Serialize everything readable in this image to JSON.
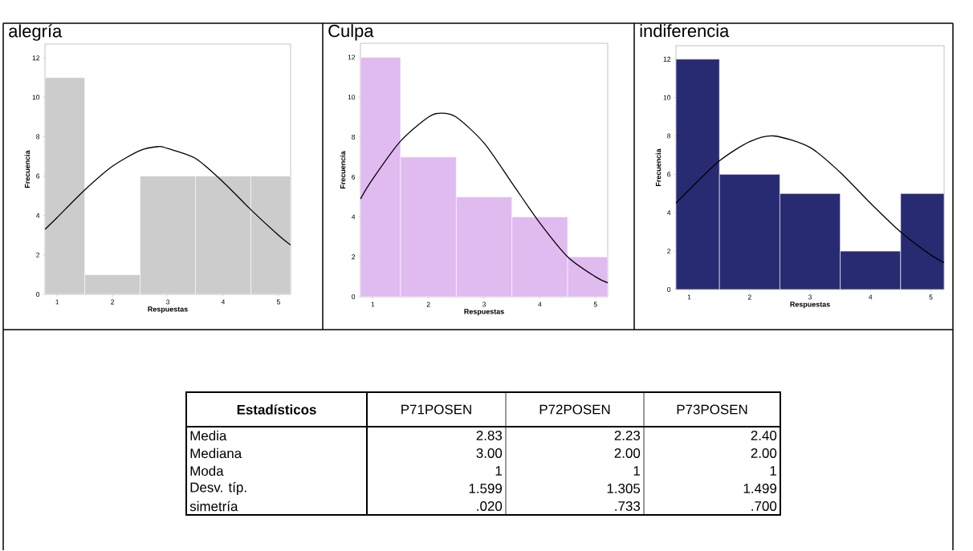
{
  "chart_data": [
    {
      "type": "histogram",
      "title": "alegría",
      "xlabel": "Respuestas",
      "ylabel": "Frecuencia",
      "bins": [
        0.78,
        1.5,
        2.5,
        3.5,
        4.5,
        5.22
      ],
      "values": [
        11,
        1,
        6,
        6,
        6
      ],
      "color": "#cccccc",
      "xlim": [
        0.78,
        5.22
      ],
      "ylim": [
        0,
        12.7
      ],
      "xticks": [
        1,
        2,
        3,
        4,
        5
      ],
      "yticks": [
        0,
        2,
        4,
        6,
        8,
        10,
        12
      ],
      "series": [
        {
          "type": "line",
          "color": "#000000",
          "x": [
            0.78,
            1.0,
            1.5,
            2.0,
            2.5,
            2.83,
            3.0,
            3.5,
            4.0,
            4.5,
            5.0,
            5.22
          ],
          "values": [
            3.3,
            3.9,
            5.3,
            6.5,
            7.3,
            7.5,
            7.4,
            6.9,
            5.7,
            4.3,
            3.0,
            2.5
          ]
        }
      ]
    },
    {
      "type": "histogram",
      "title": "Culpa",
      "xlabel": "Respuestas",
      "ylabel": "Frecuencia",
      "bins": [
        0.78,
        1.5,
        2.5,
        3.5,
        4.5,
        5.22
      ],
      "values": [
        12,
        7,
        5,
        4,
        2
      ],
      "color": "#dfbbf0",
      "xlim": [
        0.78,
        5.22
      ],
      "ylim": [
        0,
        12.7
      ],
      "xticks": [
        1,
        2,
        3,
        4,
        5
      ],
      "yticks": [
        0,
        2,
        4,
        6,
        8,
        10,
        12
      ],
      "series": [
        {
          "type": "line",
          "color": "#000000",
          "x": [
            0.78,
            1.0,
            1.5,
            2.0,
            2.23,
            2.5,
            3.0,
            3.5,
            4.0,
            4.5,
            5.0,
            5.22
          ],
          "values": [
            4.9,
            5.9,
            7.8,
            9.0,
            9.2,
            9.0,
            7.7,
            5.7,
            3.7,
            2.0,
            1.0,
            0.7
          ]
        }
      ]
    },
    {
      "type": "histogram",
      "title": "indiferencia",
      "xlabel": "Respuestas",
      "ylabel": "Frecuencia",
      "bins": [
        0.78,
        1.5,
        2.5,
        3.5,
        4.5,
        5.22
      ],
      "values": [
        12,
        6,
        5,
        2,
        5
      ],
      "color": "#282a72",
      "xlim": [
        0.78,
        5.22
      ],
      "ylim": [
        0,
        12.7
      ],
      "xticks": [
        1,
        2,
        3,
        4,
        5
      ],
      "yticks": [
        0,
        2,
        4,
        6,
        8,
        10,
        12
      ],
      "series": [
        {
          "type": "line",
          "color": "#000000",
          "x": [
            0.78,
            1.0,
            1.5,
            2.0,
            2.4,
            3.0,
            3.5,
            4.0,
            4.5,
            5.0,
            5.22
          ],
          "values": [
            4.5,
            5.2,
            6.7,
            7.7,
            8.0,
            7.4,
            6.1,
            4.5,
            3.0,
            1.8,
            1.4
          ]
        }
      ]
    },
    {
      "type": "other",
      "annotations": [
        "Estadísticos",
        "P71POSEN",
        "P72POSEN",
        "P73POSEN",
        "Media",
        "2.83",
        "2.23",
        "2.40",
        "Mediana",
        "3.00",
        "2.00",
        "2.00",
        "Moda",
        "1",
        "1",
        "1",
        "Desv. típ.",
        "1.599",
        "1.305",
        "1.499",
        "simetría",
        ".020",
        ".733",
        ".700"
      ]
    }
  ]
}
